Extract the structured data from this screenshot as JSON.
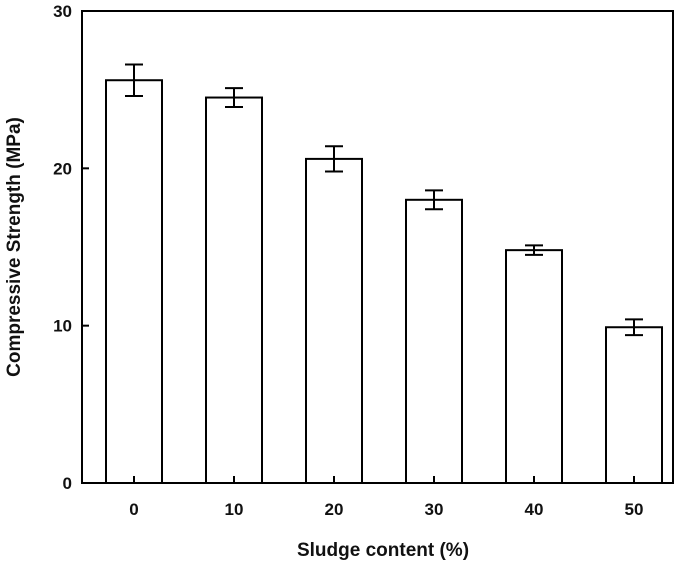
{
  "chart_data": {
    "type": "bar",
    "title": "",
    "xlabel": "Sludge content (%)",
    "ylabel": "Compressive Strength (MPa)",
    "categories": [
      "0",
      "10",
      "20",
      "30",
      "40",
      "50"
    ],
    "values": [
      25.6,
      24.5,
      20.6,
      18.0,
      14.8,
      9.9
    ],
    "errors": [
      1.0,
      0.6,
      0.8,
      0.6,
      0.3,
      0.5
    ],
    "ylim": [
      0,
      30
    ],
    "yticks": [
      0,
      10,
      20,
      30
    ],
    "grid": false,
    "legend": "none",
    "colors": {
      "bar_fill": "#ffffff",
      "bar_stroke": "#000000",
      "axis": "#000000"
    }
  }
}
